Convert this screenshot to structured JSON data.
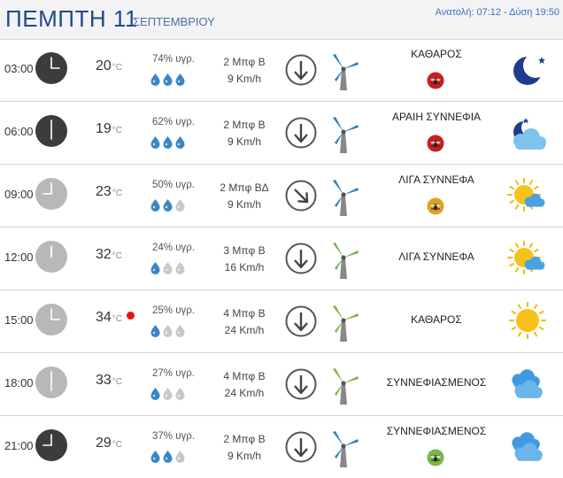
{
  "header": {
    "day": "ΠΕΜΠΤΗ 11",
    "month": "ΣΕΠΤΕΜΒΡΙΟΥ",
    "sun": "Ανατολή: 07:12 - Δύση 19:50"
  },
  "units": {
    "temp": "°C"
  },
  "colors": {
    "title": "#1f4a87",
    "link": "#3a72b8",
    "drop_filled": "#3a86c8",
    "drop_empty": "#c8c8c8",
    "hot_dot": "#e11111"
  },
  "rows": [
    {
      "time": "03:00",
      "hour": 3,
      "clock": "dark",
      "temp": "20",
      "hot": false,
      "humidity": "74% υγρ.",
      "drops": 3,
      "wind": "2 Μπφ Β",
      "speed": "9 Km/h",
      "dir": "down-arrow-icon",
      "turbine": "blue",
      "condition": "ΚΑΘΑΡΟΣ",
      "bug": "red",
      "icon": "moon-icon"
    },
    {
      "time": "06:00",
      "hour": 6,
      "clock": "dark",
      "temp": "19",
      "hot": false,
      "humidity": "62% υγρ.",
      "drops": 3,
      "wind": "2 Μπφ Β",
      "speed": "9 Km/h",
      "dir": "down-arrow-icon",
      "turbine": "blue",
      "condition": "ΑΡΑΙΗ ΣΥΝΝΕΦΙΑ",
      "bug": "red",
      "icon": "night-cloud-icon"
    },
    {
      "time": "09:00",
      "hour": 9,
      "clock": "light",
      "temp": "23",
      "hot": false,
      "humidity": "50% υγρ.",
      "drops": 2,
      "wind": "2 Μπφ ΒΔ",
      "speed": "9 Km/h",
      "dir": "down-right-arrow-icon",
      "turbine": "blue",
      "condition": "ΛΙΓΑ ΣΥΝΝΕΦΑ",
      "bug": "orange",
      "icon": "sun-cloud-icon"
    },
    {
      "time": "12:00",
      "hour": 12,
      "clock": "light",
      "temp": "32",
      "hot": false,
      "humidity": "24% υγρ.",
      "drops": 1,
      "wind": "3 Μπφ Β",
      "speed": "16 Km/h",
      "dir": "down-arrow-icon",
      "turbine": "green",
      "condition": "ΛΙΓΑ ΣΥΝΝΕΦΑ",
      "bug": "",
      "icon": "sun-cloud-icon"
    },
    {
      "time": "15:00",
      "hour": 3,
      "clock": "light",
      "temp": "34",
      "hot": true,
      "humidity": "25% υγρ.",
      "drops": 1,
      "wind": "4 Μπφ Β",
      "speed": "24 Km/h",
      "dir": "down-arrow-icon",
      "turbine": "green",
      "condition": "ΚΑΘΑΡΟΣ",
      "bug": "",
      "icon": "sun-icon"
    },
    {
      "time": "18:00",
      "hour": 6,
      "clock": "light",
      "temp": "33",
      "hot": false,
      "humidity": "27% υγρ.",
      "drops": 1,
      "wind": "4 Μπφ Β",
      "speed": "24 Km/h",
      "dir": "down-arrow-icon",
      "turbine": "green",
      "condition": "ΣΥΝΝΕΦΙΑΣΜΕΝΟΣ",
      "bug": "",
      "icon": "clouds-icon"
    },
    {
      "time": "21:00",
      "hour": 9,
      "clock": "dark",
      "temp": "29",
      "hot": false,
      "humidity": "37% υγρ.",
      "drops": 2,
      "wind": "2 Μπφ Β",
      "speed": "9 Km/h",
      "dir": "down-arrow-icon",
      "turbine": "blue",
      "condition": "ΣΥΝΝΕΦΙΑΣΜΕΝΟΣ",
      "bug": "green",
      "icon": "clouds-icon"
    }
  ]
}
